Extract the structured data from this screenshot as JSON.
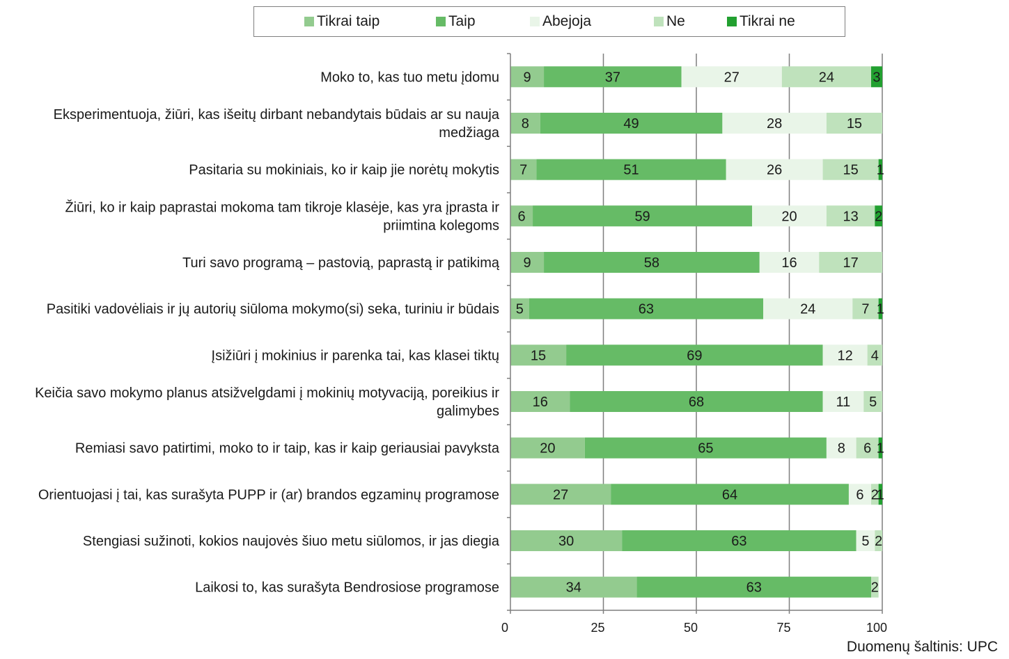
{
  "chart_data": {
    "type": "bar",
    "orientation": "horizontal",
    "stacked": true,
    "categories": [
      "Moko to, kas tuo metu įdomu",
      "Eksperimentuoja, žiūri, kas išeitų dirbant nebandytais būdais ar su nauja medžiaga",
      "Pasitaria su mokiniais, ko ir kaip jie norėtų mokytis",
      "Žiūri, ko ir kaip paprastai mokoma tam tikroje klasėje, kas yra įprasta ir priimtina kolegoms",
      "Turi savo programą – pastovią, paprastą ir patikimą",
      "Pasitiki vadovėliais ir jų autorių siūloma mokymo(si) seka, turiniu ir būdais",
      "Įsižiūri į mokinius ir parenka tai, kas klasei tiktų",
      "Keičia savo mokymo planus atsižvelgdami į mokinių motyvaciją, poreikius ir galimybes",
      "Remiasi savo patirtimi, moko to ir taip, kas ir kaip geriausiai pavyksta",
      "Orientuojasi į tai, kas surašyta PUPP ir (ar) brandos egzaminų programose",
      "Stengiasi sužinoti, kokios naujovės šiuo metu siūlomos, ir jas diegia",
      "Laikosi to, kas surašyta Bendrosiose programose"
    ],
    "category_lines": [
      [
        "Moko to, kas tuo metu įdomu"
      ],
      [
        "Eksperimentuoja, žiūri, kas išeitų dirbant nebandytais būdais ar su nauja",
        "medžiaga"
      ],
      [
        "Pasitaria su mokiniais, ko ir kaip jie norėtų mokytis"
      ],
      [
        "Žiūri, ko ir kaip paprastai mokoma tam tikroje klasėje, kas yra įprasta ir",
        "priimtina kolegoms"
      ],
      [
        "Turi savo programą – pastovią, paprastą ir patikimą"
      ],
      [
        "Pasitiki vadovėliais ir jų autorių siūloma mokymo(si) seka, turiniu ir būdais"
      ],
      [
        "Įsižiūri į mokinius ir parenka tai, kas klasei tiktų"
      ],
      [
        "Keičia savo mokymo planus atsižvelgdami į mokinių motyvaciją, poreikius ir",
        "galimybes"
      ],
      [
        "Remiasi savo patirtimi, moko to ir taip, kas ir kaip geriausiai pavyksta"
      ],
      [
        "Orientuojasi į tai, kas surašyta PUPP ir (ar) brandos egzaminų programose"
      ],
      [
        "Stengiasi sužinoti, kokios naujovės šiuo metu siūlomos, ir jas diegia"
      ],
      [
        "Laikosi to, kas surašyta Bendrosiose programose"
      ]
    ],
    "series": [
      {
        "name": "Tikrai taip",
        "color": "#93cb8f",
        "values": [
          9,
          8,
          7,
          6,
          9,
          5,
          15,
          16,
          20,
          27,
          30,
          34
        ]
      },
      {
        "name": "Taip",
        "color": "#66bb66",
        "values": [
          37,
          49,
          51,
          59,
          58,
          63,
          69,
          68,
          65,
          64,
          63,
          63
        ]
      },
      {
        "name": "Abejoja",
        "color": "#e9f5e8",
        "values": [
          27,
          28,
          26,
          20,
          16,
          24,
          12,
          11,
          8,
          6,
          5,
          0
        ]
      },
      {
        "name": "Ne",
        "color": "#bfe2bc",
        "values": [
          24,
          15,
          15,
          13,
          17,
          7,
          4,
          5,
          6,
          2,
          2,
          2
        ]
      },
      {
        "name": "Tikrai ne",
        "color": "#22a030",
        "values": [
          3,
          0,
          1,
          2,
          0,
          1,
          0,
          0,
          1,
          1,
          0,
          0
        ]
      }
    ],
    "xlim": [
      0,
      100
    ],
    "xticks": [
      0,
      25,
      50,
      75,
      100
    ],
    "grid": true,
    "legend": "top"
  },
  "source_note": "Duomenų šaltinis: UPC"
}
